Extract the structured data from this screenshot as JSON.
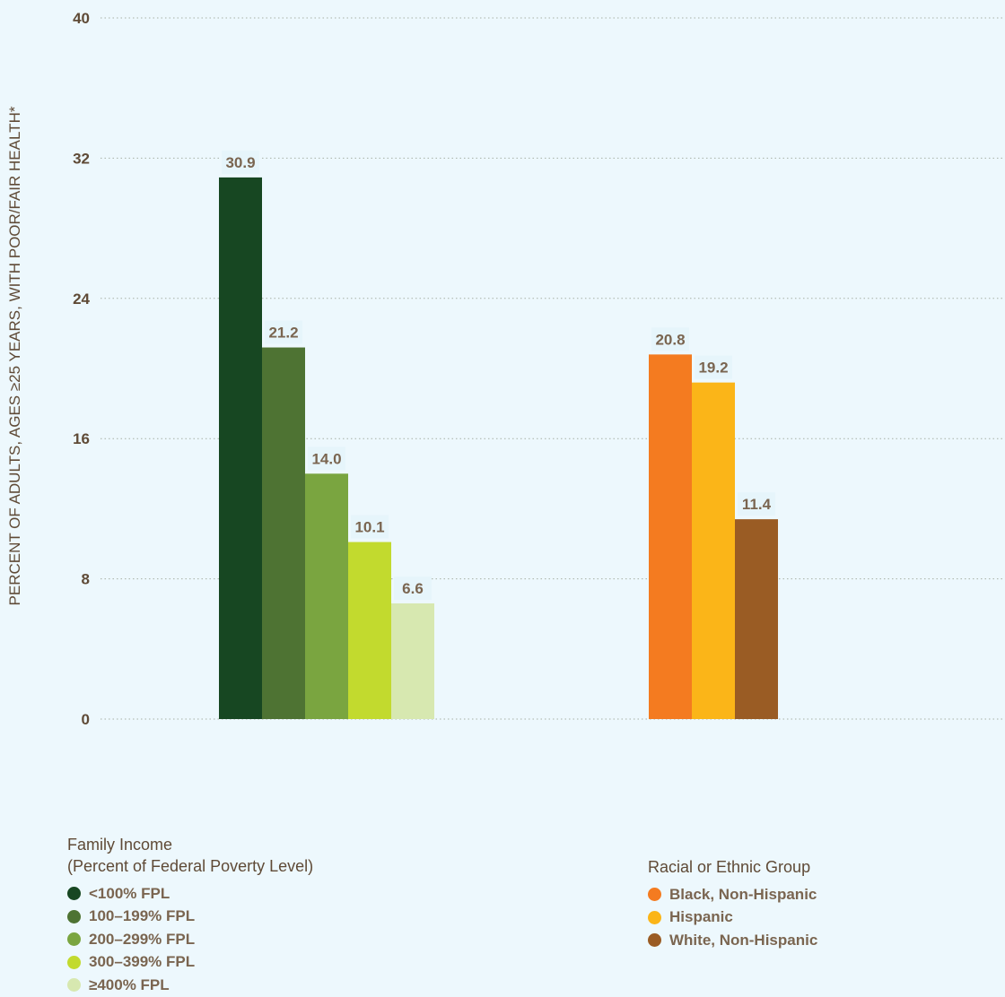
{
  "chart_data": {
    "type": "bar",
    "ylabel": "PERCENT OF ADULTS, AGES ≥25 YEARS, WITH POOR/FAIR HEALTH*",
    "ylim": [
      0,
      40
    ],
    "yticks": [
      0,
      8,
      16,
      24,
      32,
      40
    ],
    "grid": "horizontal dotted",
    "groups": [
      {
        "name": "Family Income",
        "bars": [
          {
            "label": "<100% FPL",
            "value": 30.9,
            "color": "#174722"
          },
          {
            "label": "100–199% FPL",
            "value": 21.2,
            "color": "#4e7333"
          },
          {
            "label": "200–299% FPL",
            "value": 14.0,
            "color": "#7aa540"
          },
          {
            "label": "300–399% FPL",
            "value": 10.1,
            "color": "#c2da2e"
          },
          {
            "label": "≥400% FPL",
            "value": 6.6,
            "color": "#d7e8b0"
          }
        ]
      },
      {
        "name": "Racial or Ethnic Group",
        "bars": [
          {
            "label": "Black, Non-Hispanic",
            "value": 20.8,
            "color": "#f47b20"
          },
          {
            "label": "Hispanic",
            "value": 19.2,
            "color": "#fbb518"
          },
          {
            "label": "White, Non-Hispanic",
            "value": 11.4,
            "color": "#9a5c24"
          }
        ]
      }
    ]
  },
  "legend": {
    "income_title_line1": "Family Income",
    "income_title_line2": "(Percent of Federal Poverty Level)",
    "race_title": "Racial or Ethnic Group"
  },
  "colors": {
    "background": "#edf8fd",
    "grid": "#a7b0a5",
    "tick_text": "#5f4a36",
    "value_text": "#7a6550"
  }
}
